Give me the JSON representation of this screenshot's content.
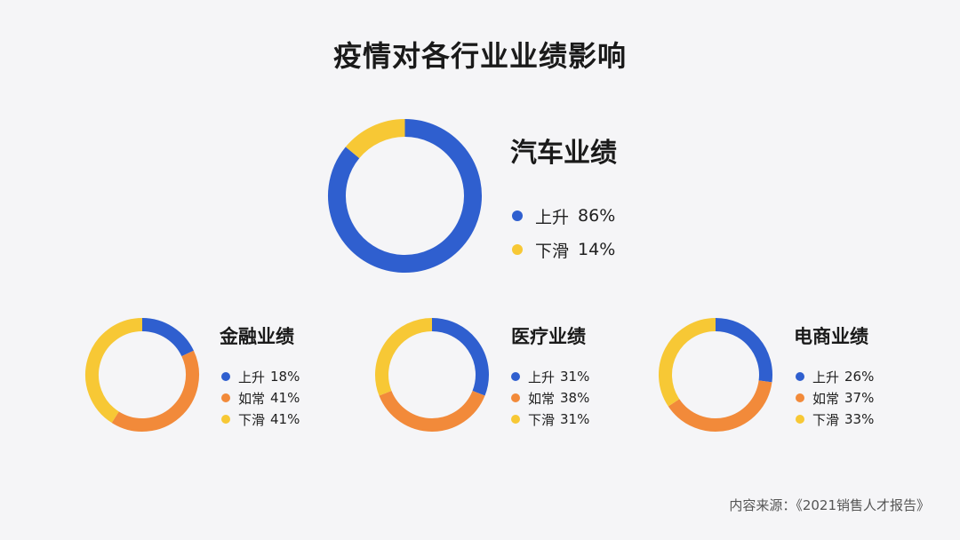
{
  "title": "疫情对各行业业绩影响",
  "source": "内容来源：《2021销售人才报告》",
  "colors": {
    "up": "#2f5fcf",
    "normal": "#f28a3a",
    "down": "#f7c835"
  },
  "chart_data": [
    {
      "type": "pie",
      "title": "汽车业绩",
      "slices": [
        {
          "label": "上升",
          "value": 86,
          "value_text": "86%",
          "color": "#2f5fcf"
        },
        {
          "label": "下滑",
          "value": 14,
          "value_text": "14%",
          "color": "#f7c835"
        }
      ]
    },
    {
      "type": "pie",
      "title": "金融业绩",
      "slices": [
        {
          "label": "上升",
          "value": 18,
          "value_text": "18%",
          "color": "#2f5fcf"
        },
        {
          "label": "如常",
          "value": 41,
          "value_text": "41%",
          "color": "#f28a3a"
        },
        {
          "label": "下滑",
          "value": 41,
          "value_text": "41%",
          "color": "#f7c835"
        }
      ]
    },
    {
      "type": "pie",
      "title": "医疗业绩",
      "slices": [
        {
          "label": "上升",
          "value": 31,
          "value_text": "31%",
          "color": "#2f5fcf"
        },
        {
          "label": "如常",
          "value": 38,
          "value_text": "38%",
          "color": "#f28a3a"
        },
        {
          "label": "下滑",
          "value": 31,
          "value_text": "31%",
          "color": "#f7c835"
        }
      ]
    },
    {
      "type": "pie",
      "title": "电商业绩",
      "slices": [
        {
          "label": "上升",
          "value": 26,
          "value_text": "26%",
          "color": "#2f5fcf"
        },
        {
          "label": "如常",
          "value": 37,
          "value_text": "37%",
          "color": "#f28a3a"
        },
        {
          "label": "下滑",
          "value": 33,
          "value_text": "33%",
          "color": "#f7c835"
        }
      ]
    }
  ]
}
